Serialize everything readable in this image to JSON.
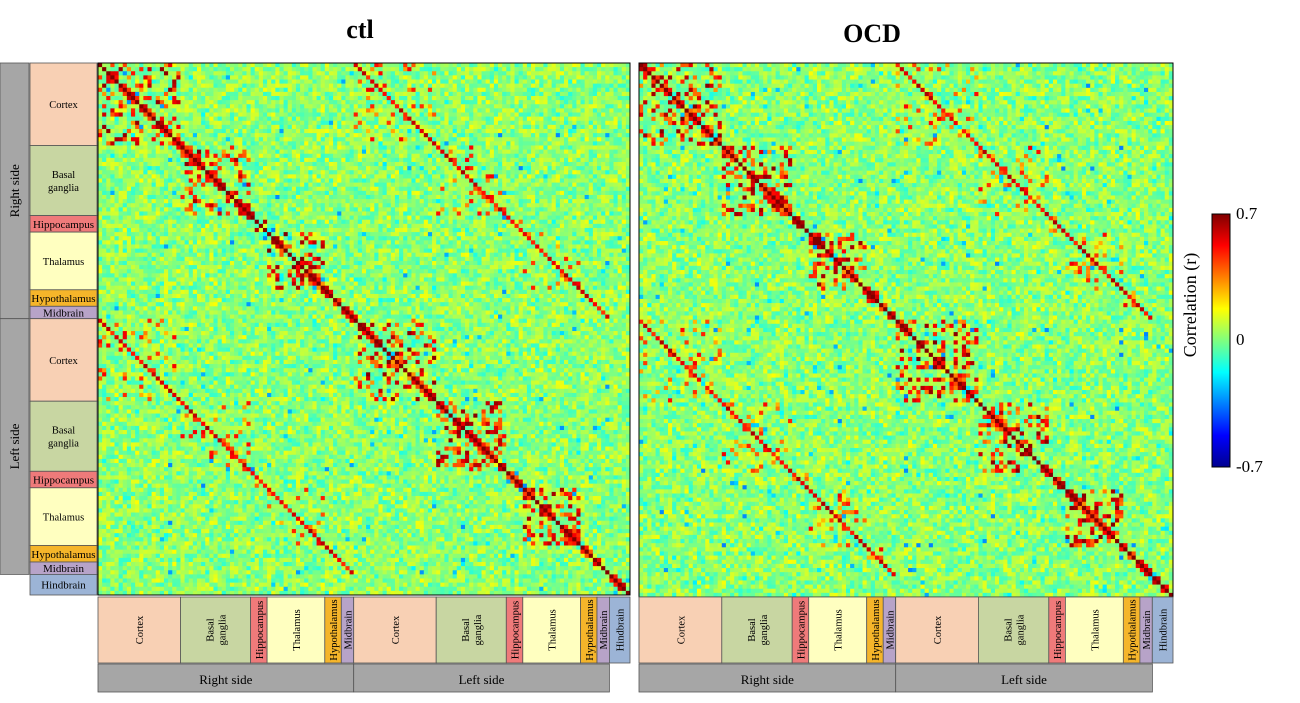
{
  "chart_data": {
    "type": "heatmap",
    "colorbar": {
      "label": "Correlation (r)",
      "ticks": [
        "0.7",
        "0",
        "-0.7"
      ],
      "range": [
        -0.7,
        0.7
      ],
      "colormap": "jet"
    },
    "regions": [
      {
        "name": "Cortex",
        "label": "Cortex",
        "n": 20,
        "color": "#f8d0b4"
      },
      {
        "name": "Basal ganglia",
        "label": "Basal\nganglia",
        "n": 17,
        "color": "#c8d6a2"
      },
      {
        "name": "Hippocampus",
        "label": "Hippocampus",
        "n": 4,
        "color": "#ef7a7a"
      },
      {
        "name": "Thalamus",
        "label": "Thalamus",
        "n": 14,
        "color": "#ffffc0"
      },
      {
        "name": "Hypothalamus",
        "label": "Hypothalamus",
        "n": 4,
        "color": "#f5b52a"
      },
      {
        "name": "Midbrain",
        "label": "Midbrain",
        "n": 3,
        "color": "#b7a3c8"
      }
    ],
    "hindbrain": {
      "name": "Hindbrain",
      "label": "Hindbrain",
      "n": 5,
      "color": "#9cb4d6"
    },
    "sides": [
      "Right side",
      "Left side"
    ],
    "panels": [
      {
        "title": "ctl",
        "strong_blocks": [
          [
            2,
            3,
            0.6
          ],
          [
            1,
            1,
            0.45
          ],
          [
            0,
            0,
            0.4
          ],
          [
            3,
            3,
            0.35
          ]
        ]
      },
      {
        "title": "OCD",
        "strong_blocks": [
          [
            2,
            3,
            0.6
          ],
          [
            0,
            0,
            0.45
          ],
          [
            1,
            1,
            0.4
          ],
          [
            3,
            3,
            0.3
          ]
        ]
      }
    ]
  }
}
